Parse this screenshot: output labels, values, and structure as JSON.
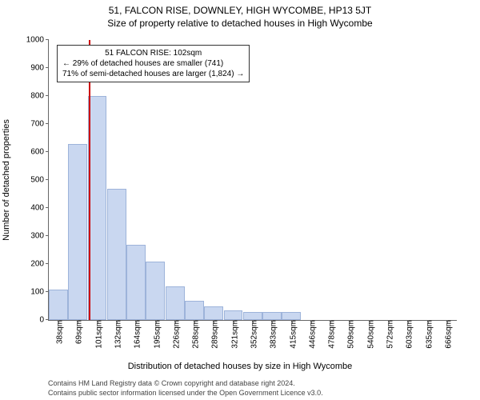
{
  "title": "51, FALCON RISE, DOWNLEY, HIGH WYCOMBE, HP13 5JT",
  "subtitle": "Size of property relative to detached houses in High Wycombe",
  "ylabel": "Number of detached properties",
  "xlabel": "Distribution of detached houses by size in High Wycombe",
  "footer1": "Contains HM Land Registry data © Crown copyright and database right 2024.",
  "footer2": "Contains public sector information licensed under the Open Government Licence v3.0.",
  "chart": {
    "type": "histogram",
    "ylim": [
      0,
      1000
    ],
    "ytick_step": 100,
    "yticks": [
      0,
      100,
      200,
      300,
      400,
      500,
      600,
      700,
      800,
      900,
      1000
    ],
    "bar_color": "#c9d7f0",
    "bar_border": "#9db3da",
    "background_color": "#ffffff",
    "axis_color": "#666666",
    "refline_color": "#cc0000",
    "refline_x_value": 102,
    "x_range": [
      38,
      697
    ],
    "categories": [
      "38sqm",
      "69sqm",
      "101sqm",
      "132sqm",
      "164sqm",
      "195sqm",
      "226sqm",
      "258sqm",
      "289sqm",
      "321sqm",
      "352sqm",
      "383sqm",
      "415sqm",
      "446sqm",
      "478sqm",
      "509sqm",
      "540sqm",
      "572sqm",
      "603sqm",
      "635sqm",
      "666sqm"
    ],
    "values": [
      110,
      630,
      800,
      470,
      270,
      210,
      120,
      70,
      50,
      35,
      30,
      30,
      30,
      0,
      0,
      0,
      0,
      0,
      0,
      0,
      0
    ],
    "annotation": {
      "lines": [
        "51 FALCON RISE: 102sqm",
        "← 29% of detached houses are smaller (741)",
        "71% of semi-detached houses are larger (1,824) →"
      ],
      "box_border": "#333333",
      "box_bg": "#ffffff",
      "fontsize": 10
    },
    "title_fontsize": 12,
    "label_fontsize": 11,
    "tick_fontsize": 10
  }
}
